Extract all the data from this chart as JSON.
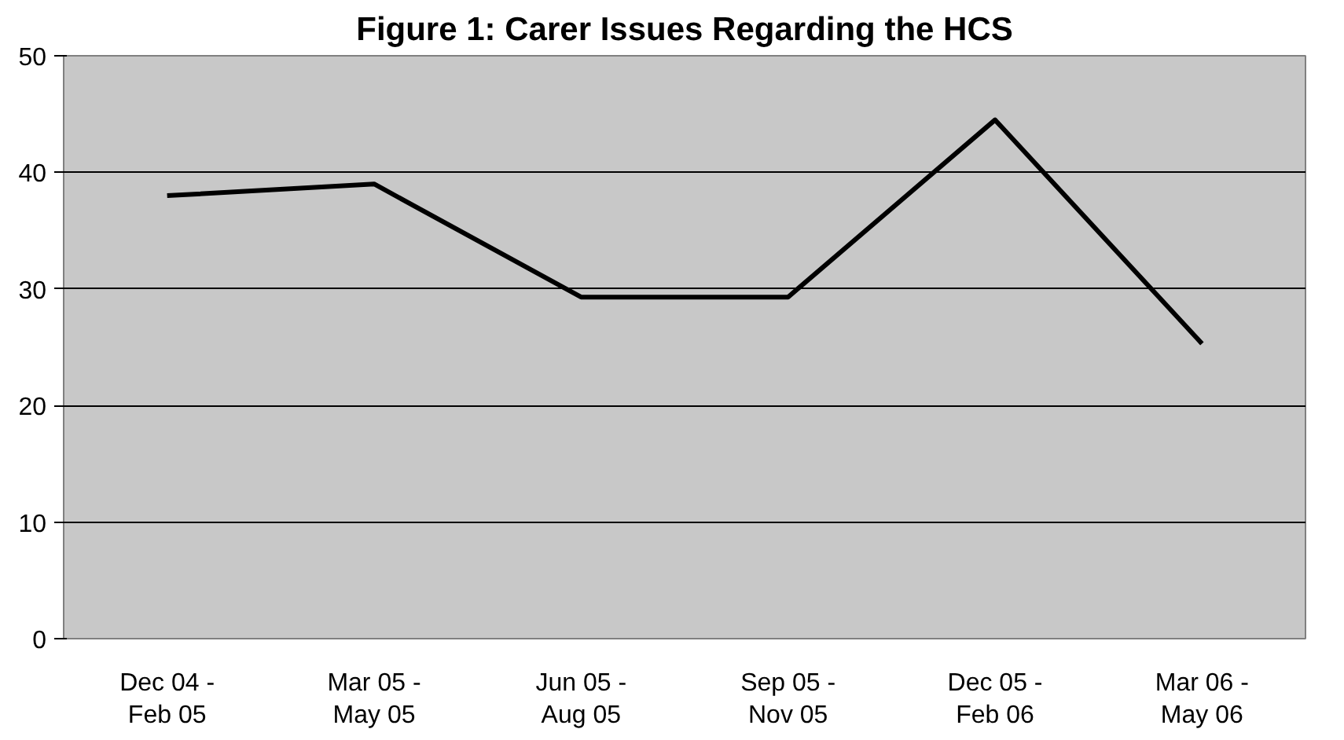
{
  "chart_data": {
    "type": "line",
    "title": "Figure 1: Carer Issues Regarding the HCS",
    "categories": [
      "Dec 04 -\nFeb 05",
      "Mar 05 -\nMay 05",
      "Jun 05 -\nAug 05",
      "Sep 05 -\nNov 05",
      "Dec 05 -\nFeb 06",
      "Mar 06 -\nMay 06"
    ],
    "series": [
      {
        "color": "#000000",
        "values": [
          38,
          39,
          29.3,
          29.3,
          44.5,
          25.3
        ]
      }
    ],
    "ylim": [
      0,
      50
    ],
    "yticks": [
      0,
      10,
      20,
      30,
      40,
      50
    ],
    "grid": "y",
    "marker": "none",
    "line_style": "solid"
  }
}
